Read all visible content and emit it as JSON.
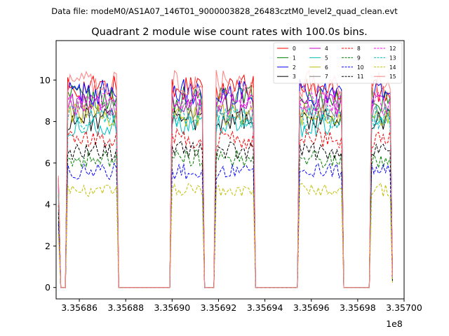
{
  "suptitle": "Data file: modeM0/AS1A07_146T01_9000003828_26483cztM0_level2_quad_clean.evt",
  "chart_data": {
    "type": "line",
    "title": "Quadrant 2 module wise count rates with 100.0s bins.",
    "xlabel": "",
    "ylabel": "",
    "x_offset_label": "1e8",
    "xlim": [
      335685.0,
      335700.0
    ],
    "ylim": [
      -0.55,
      11.9
    ],
    "xticks": [
      335686,
      335688,
      335690,
      335692,
      335694,
      335696,
      335698,
      335700
    ],
    "xtick_labels": [
      "3.35686",
      "3.35688",
      "3.35690",
      "3.35692",
      "3.35694",
      "3.35696",
      "3.35698",
      "3.35700"
    ],
    "yticks": [
      0,
      2,
      4,
      6,
      8,
      10
    ],
    "ytick_labels": [
      "0",
      "2",
      "4",
      "6",
      "8",
      "10"
    ],
    "x_range": [
      335685.1,
      335699.5
    ],
    "x_step": 0.1,
    "active_segments": [
      [
        335685.5,
        335687.6
      ],
      [
        335690.0,
        335691.3
      ],
      [
        335691.9,
        335693.5
      ],
      [
        335695.5,
        335697.3
      ],
      [
        335698.6,
        335699.4
      ]
    ],
    "legend": {
      "location": "upper right",
      "columns": 4
    },
    "series": [
      {
        "name": "0",
        "color": "#ff0000",
        "dash": "solid",
        "level": 9.6
      },
      {
        "name": "1",
        "color": "#008000",
        "dash": "solid",
        "level": 9.1
      },
      {
        "name": "2",
        "color": "#0000ff",
        "dash": "solid",
        "level": 9.4
      },
      {
        "name": "3",
        "color": "#000000",
        "dash": "solid",
        "level": 8.1
      },
      {
        "name": "4",
        "color": "#bf00bf",
        "dash": "solid",
        "level": 8.8
      },
      {
        "name": "5",
        "color": "#00bfbf",
        "dash": "solid",
        "level": 7.8
      },
      {
        "name": "6",
        "color": "#bfbf00",
        "dash": "solid",
        "level": 8.3
      },
      {
        "name": "7",
        "color": "#808080",
        "dash": "solid",
        "level": 8.5
      },
      {
        "name": "8",
        "color": "#ff0000",
        "dash": "dashed",
        "level": 7.2
      },
      {
        "name": "9",
        "color": "#008000",
        "dash": "dashed",
        "level": 6.2
      },
      {
        "name": "10",
        "color": "#0000ff",
        "dash": "dashed",
        "level": 5.6
      },
      {
        "name": "11",
        "color": "#000000",
        "dash": "dashed",
        "level": 6.6
      },
      {
        "name": "12",
        "color": "#ff00ff",
        "dash": "dashed",
        "level": 8.9
      },
      {
        "name": "13",
        "color": "#00bfbf",
        "dash": "dashed",
        "level": 8.2
      },
      {
        "name": "14",
        "color": "#bfbf00",
        "dash": "dashed",
        "level": 4.7
      },
      {
        "name": "15",
        "color": "#ff8080",
        "dash": "solid",
        "level": 9.8
      }
    ]
  }
}
